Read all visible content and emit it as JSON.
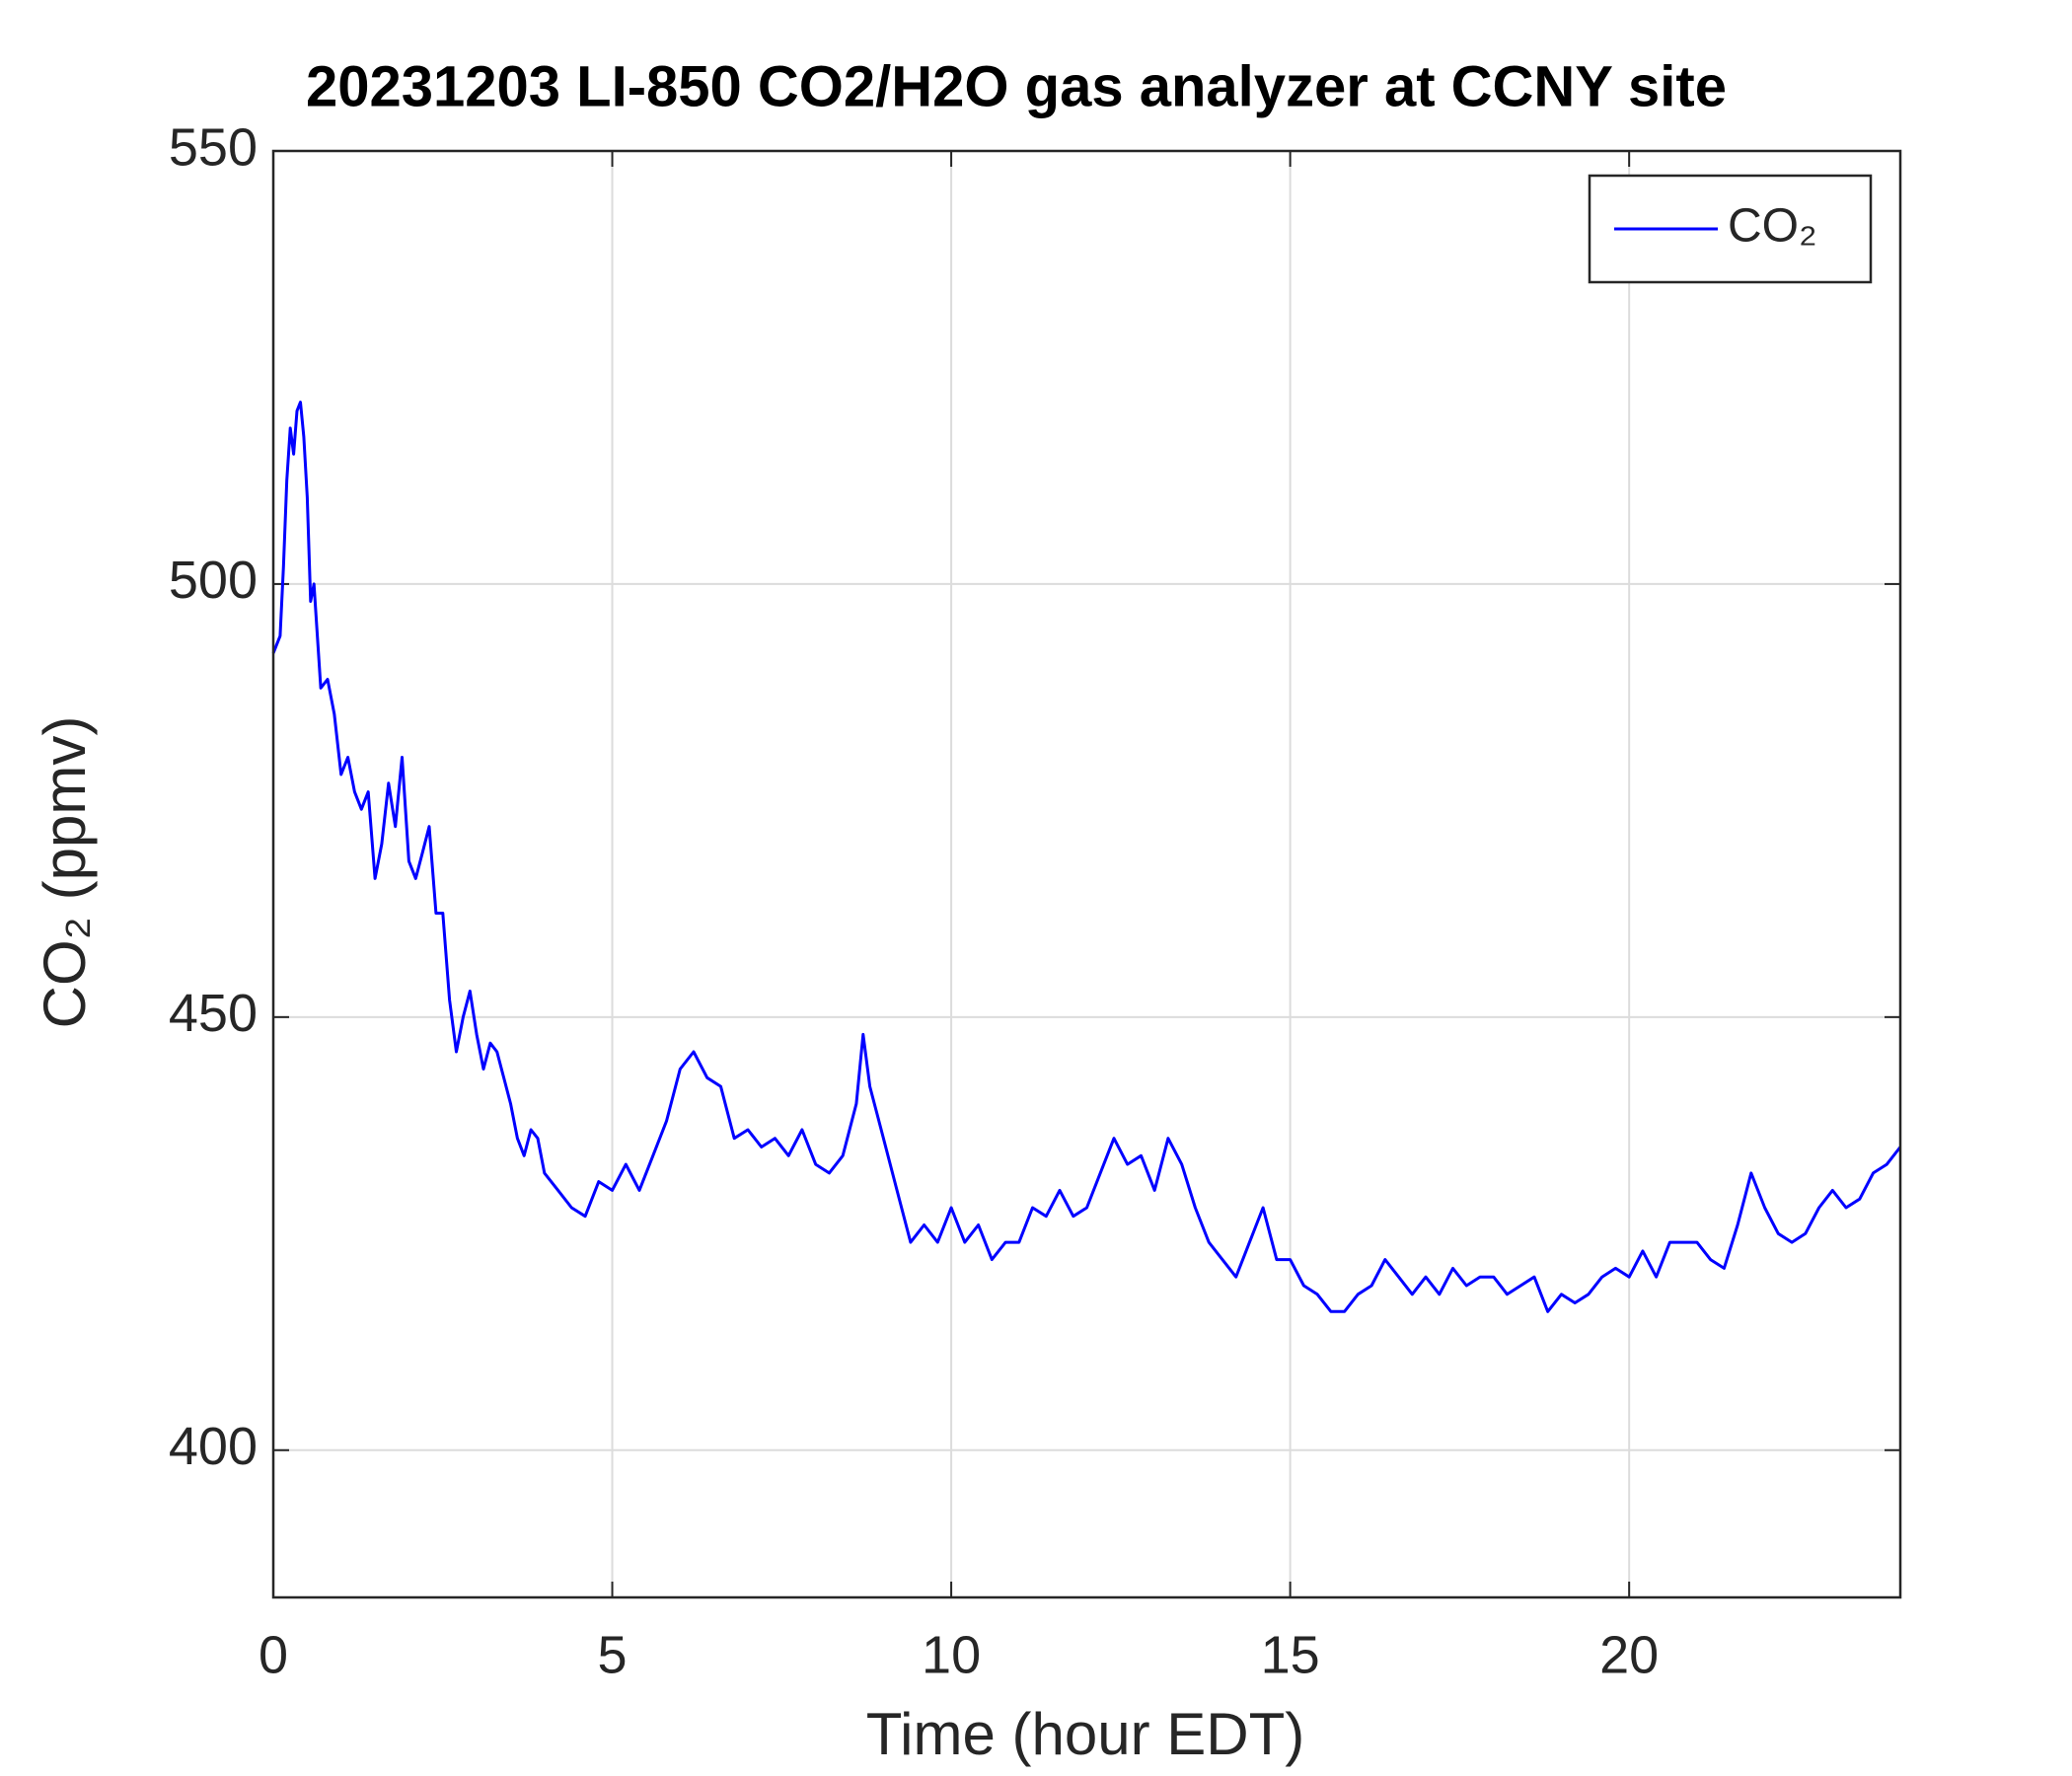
{
  "chart_data": {
    "type": "line",
    "title": "20231203 LI-850 CO2/H2O gas analyzer at CCNY site",
    "xlabel": "Time (hour EDT)",
    "ylabel": "CO₂ (ppmv)",
    "x": [
      0,
      0.1,
      0.15,
      0.2,
      0.25,
      0.3,
      0.35,
      0.4,
      0.45,
      0.5,
      0.55,
      0.6,
      0.7,
      0.8,
      0.9,
      1.0,
      1.1,
      1.2,
      1.3,
      1.4,
      1.5,
      1.6,
      1.7,
      1.8,
      1.9,
      2.0,
      2.1,
      2.2,
      2.3,
      2.4,
      2.5,
      2.6,
      2.7,
      2.8,
      2.9,
      3.0,
      3.1,
      3.2,
      3.3,
      3.4,
      3.5,
      3.6,
      3.7,
      3.8,
      3.9,
      4.0,
      4.2,
      4.4,
      4.6,
      4.8,
      5.0,
      5.2,
      5.4,
      5.6,
      5.8,
      6.0,
      6.2,
      6.4,
      6.6,
      6.8,
      7.0,
      7.2,
      7.4,
      7.6,
      7.8,
      8.0,
      8.2,
      8.4,
      8.6,
      8.7,
      8.8,
      9.0,
      9.2,
      9.4,
      9.6,
      9.8,
      10.0,
      10.2,
      10.4,
      10.6,
      10.8,
      11.0,
      11.2,
      11.4,
      11.6,
      11.8,
      12.0,
      12.2,
      12.4,
      12.6,
      12.8,
      13.0,
      13.2,
      13.4,
      13.6,
      13.8,
      14.0,
      14.2,
      14.4,
      14.6,
      14.8,
      15.0,
      15.2,
      15.4,
      15.6,
      15.8,
      16.0,
      16.2,
      16.4,
      16.6,
      16.8,
      17.0,
      17.2,
      17.4,
      17.6,
      17.8,
      18.0,
      18.2,
      18.4,
      18.6,
      18.8,
      19.0,
      19.2,
      19.4,
      19.6,
      19.8,
      20.0,
      20.2,
      20.4,
      20.6,
      20.8,
      21.0,
      21.2,
      21.4,
      21.6,
      21.8,
      22.0,
      22.2,
      22.4,
      22.6,
      22.8,
      23.0,
      23.2,
      23.4,
      23.6,
      23.8,
      24.0
    ],
    "series": [
      {
        "name": "CO₂",
        "color": "#0000ff",
        "values": [
          492,
          494,
          502,
          512,
          518,
          515,
          520,
          521,
          517,
          510,
          498,
          500,
          488,
          489,
          485,
          478,
          480,
          476,
          474,
          476,
          466,
          470,
          477,
          472,
          480,
          468,
          466,
          469,
          472,
          462,
          462,
          452,
          446,
          450,
          453,
          448,
          444,
          447,
          446,
          443,
          440,
          436,
          434,
          437,
          436,
          432,
          430,
          428,
          427,
          431,
          430,
          433,
          430,
          434,
          438,
          444,
          446,
          443,
          442,
          436,
          437,
          435,
          436,
          434,
          437,
          433,
          432,
          434,
          440,
          448,
          442,
          436,
          430,
          424,
          426,
          424,
          428,
          424,
          426,
          422,
          424,
          424,
          428,
          427,
          430,
          427,
          428,
          432,
          436,
          433,
          434,
          430,
          436,
          433,
          428,
          424,
          422,
          420,
          424,
          428,
          422,
          422,
          419,
          418,
          416,
          416,
          418,
          419,
          422,
          420,
          418,
          420,
          418,
          421,
          419,
          420,
          420,
          418,
          419,
          420,
          416,
          418,
          417,
          418,
          420,
          421,
          420,
          423,
          420,
          424,
          424,
          424,
          422,
          421,
          426,
          432,
          428,
          425,
          424,
          425,
          428,
          430,
          428,
          429,
          432,
          433,
          435
        ]
      }
    ],
    "xlim": [
      0,
      24
    ],
    "ylim": [
      383,
      550
    ],
    "xticks": [
      0,
      5,
      10,
      15,
      20
    ],
    "yticks": [
      400,
      450,
      500,
      550
    ],
    "grid": true,
    "legend": "upper right"
  }
}
